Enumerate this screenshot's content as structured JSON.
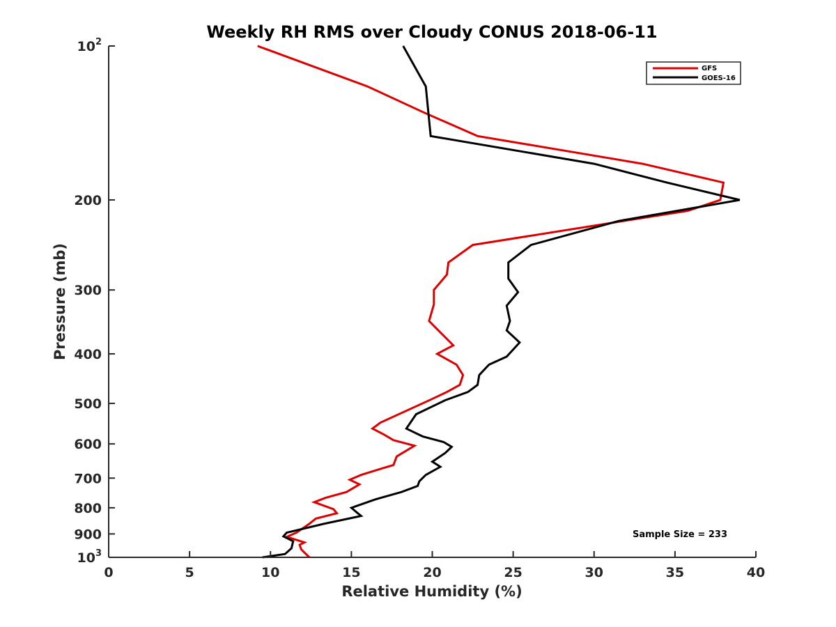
{
  "chart_data": {
    "type": "line",
    "title": "Weekly RH RMS over Cloudy CONUS 2018-06-11",
    "xlabel": "Relative Humidity (%)",
    "ylabel": "Pressure (mb)",
    "xlim": [
      0,
      40
    ],
    "ylim": [
      100,
      1000
    ],
    "y_scale": "log",
    "y_reversed": true,
    "x_ticks": [
      "0",
      "5",
      "10",
      "15",
      "20",
      "25",
      "30",
      "35",
      "40"
    ],
    "y_ticks": [
      {
        "value": 100,
        "base": "10",
        "exp": "2"
      },
      {
        "value": 200,
        "label": "200"
      },
      {
        "value": 300,
        "label": "300"
      },
      {
        "value": 400,
        "label": "400"
      },
      {
        "value": 500,
        "label": "500"
      },
      {
        "value": 600,
        "label": "600"
      },
      {
        "value": 700,
        "label": "700"
      },
      {
        "value": 800,
        "label": "800"
      },
      {
        "value": 900,
        "label": "900"
      },
      {
        "value": 1000,
        "base": "10",
        "exp": "3"
      }
    ],
    "grid": false,
    "legend_position": "top-right",
    "annotation": "Sample Size = 233",
    "series": [
      {
        "name": "GFS",
        "color": "#dd0000",
        "points": [
          [
            9.2,
            100
          ],
          [
            16,
            120
          ],
          [
            19.5,
            135
          ],
          [
            22.8,
            150
          ],
          [
            33.0,
            170
          ],
          [
            38.0,
            185
          ],
          [
            37.8,
            200
          ],
          [
            35.8,
            210
          ],
          [
            22.5,
            245
          ],
          [
            21.0,
            265
          ],
          [
            20.9,
            280
          ],
          [
            20.1,
            300
          ],
          [
            20.1,
            320
          ],
          [
            19.8,
            345
          ],
          [
            21.3,
            385
          ],
          [
            20.3,
            400
          ],
          [
            21.5,
            420
          ],
          [
            21.9,
            440
          ],
          [
            21.7,
            460
          ],
          [
            20.9,
            475
          ],
          [
            19.7,
            495
          ],
          [
            16.8,
            545
          ],
          [
            16.3,
            560
          ],
          [
            17.0,
            575
          ],
          [
            17.6,
            590
          ],
          [
            18.9,
            605
          ],
          [
            17.8,
            635
          ],
          [
            17.6,
            660
          ],
          [
            16.9,
            670
          ],
          [
            15.6,
            690
          ],
          [
            14.9,
            705
          ],
          [
            15.5,
            720
          ],
          [
            14.7,
            745
          ],
          [
            13.4,
            765
          ],
          [
            12.7,
            780
          ],
          [
            13.9,
            805
          ],
          [
            14.1,
            820
          ],
          [
            12.8,
            840
          ],
          [
            12.4,
            860
          ],
          [
            11.6,
            895
          ],
          [
            11.0,
            912
          ],
          [
            12.1,
            935
          ],
          [
            11.8,
            945
          ],
          [
            11.9,
            965
          ],
          [
            12.4,
            1000
          ]
        ]
      },
      {
        "name": "GOES-16",
        "color": "#000000",
        "points": [
          [
            18.2,
            100
          ],
          [
            19.6,
            120
          ],
          [
            19.9,
            150
          ],
          [
            30.0,
            170
          ],
          [
            34.5,
            185
          ],
          [
            39.0,
            200
          ],
          [
            31.5,
            220
          ],
          [
            26.1,
            245
          ],
          [
            24.7,
            265
          ],
          [
            24.7,
            285
          ],
          [
            25.3,
            303
          ],
          [
            24.6,
            322
          ],
          [
            24.8,
            345
          ],
          [
            24.6,
            360
          ],
          [
            25.4,
            380
          ],
          [
            24.6,
            405
          ],
          [
            23.5,
            420
          ],
          [
            22.9,
            440
          ],
          [
            22.8,
            460
          ],
          [
            22.2,
            475
          ],
          [
            20.8,
            493
          ],
          [
            19.0,
            525
          ],
          [
            18.4,
            560
          ],
          [
            19.4,
            580
          ],
          [
            20.7,
            595
          ],
          [
            21.2,
            608
          ],
          [
            20.8,
            625
          ],
          [
            20.0,
            650
          ],
          [
            20.5,
            665
          ],
          [
            19.6,
            690
          ],
          [
            19.2,
            710
          ],
          [
            19.1,
            725
          ],
          [
            18.1,
            745
          ],
          [
            16.5,
            770
          ],
          [
            15.0,
            800
          ],
          [
            15.3,
            815
          ],
          [
            15.6,
            830
          ],
          [
            13.3,
            860
          ],
          [
            11.0,
            895
          ],
          [
            10.8,
            910
          ],
          [
            11.4,
            930
          ],
          [
            11.3,
            960
          ],
          [
            10.9,
            985
          ],
          [
            9.5,
            1000
          ]
        ]
      }
    ]
  }
}
